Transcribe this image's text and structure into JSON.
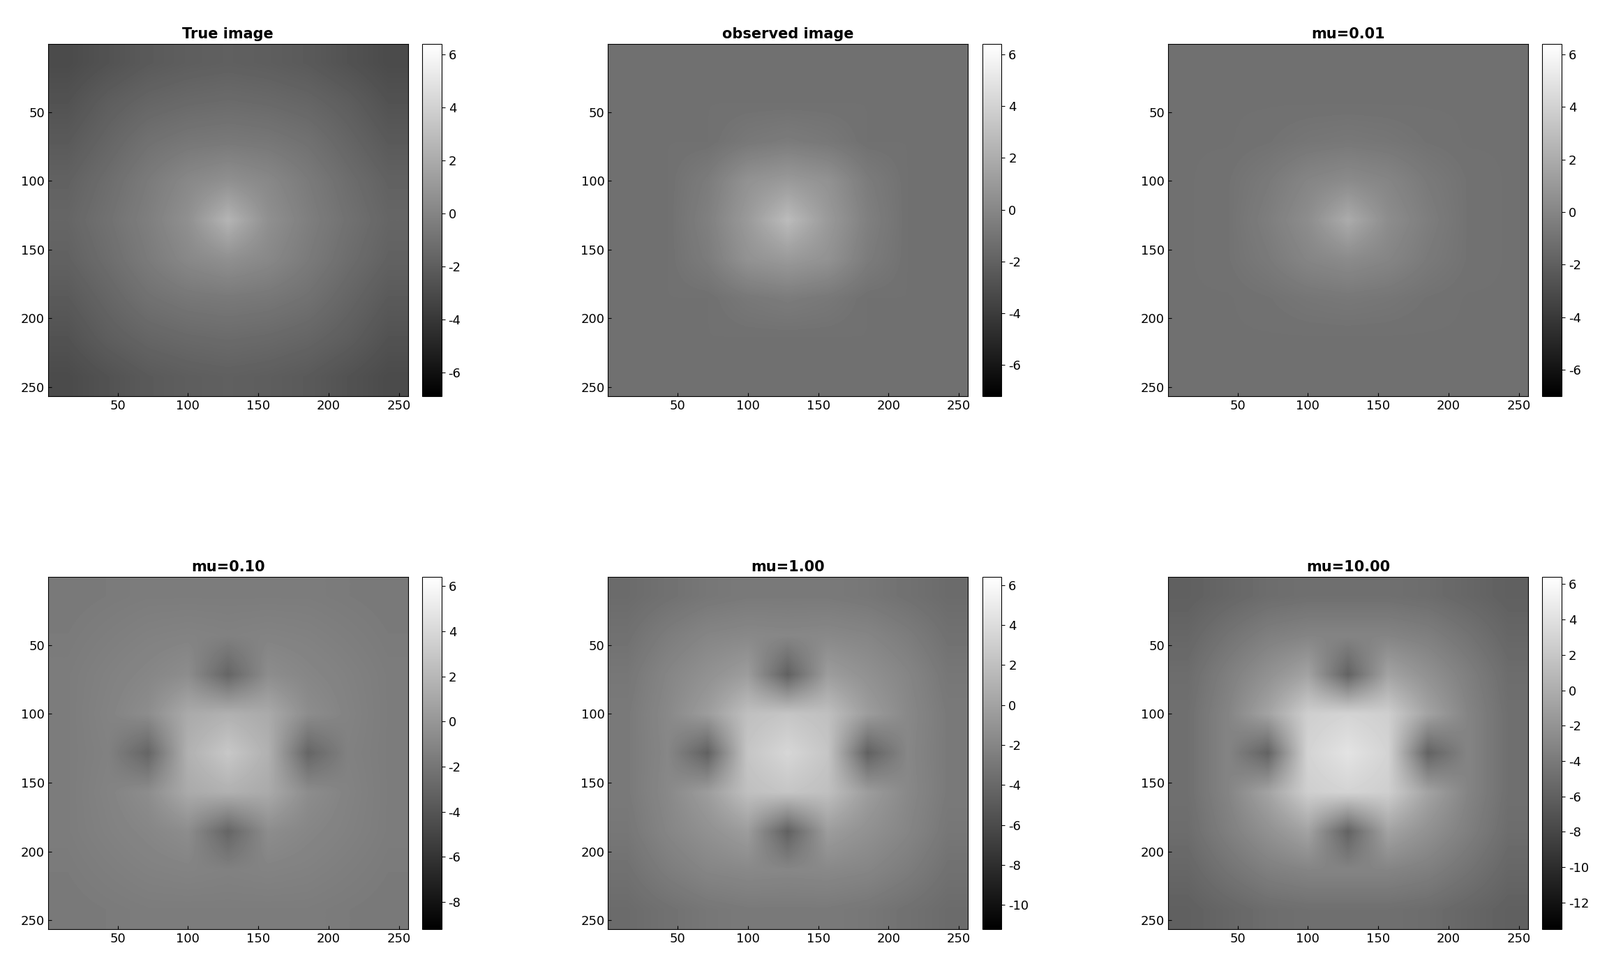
{
  "chart_data": [
    {
      "type": "heatmap",
      "title": "True image",
      "xlim": [
        0.5,
        256.5
      ],
      "ylim": [
        256.5,
        0.5
      ],
      "xticks": [
        50,
        100,
        150,
        200,
        250
      ],
      "yticks": [
        50,
        100,
        150,
        200,
        250
      ],
      "colorbar_range": [
        -6.9,
        6.4
      ],
      "colorbar_ticks": [
        -6,
        -4,
        -2,
        0,
        2,
        4,
        6
      ],
      "cells": [
        [
          -3.0,
          -2.6,
          -2.2,
          -2.0,
          -1.9,
          -2.0,
          -2.2,
          -2.6,
          -3.0
        ],
        [
          -2.6,
          -2.0,
          -1.6,
          -1.4,
          -1.3,
          -1.4,
          -1.6,
          -2.0,
          -2.6
        ],
        [
          -2.2,
          -1.6,
          -1.0,
          -0.7,
          -0.6,
          -0.7,
          -1.0,
          -1.6,
          -2.2
        ],
        [
          -1.8,
          -1.2,
          -0.5,
          0.2,
          0.6,
          0.2,
          -0.5,
          -1.2,
          -1.8
        ],
        [
          -1.6,
          -1.0,
          -0.3,
          0.6,
          2.5,
          0.6,
          -0.3,
          -1.0,
          -1.6
        ],
        [
          -1.8,
          -1.2,
          -0.5,
          0.2,
          0.6,
          0.2,
          -0.5,
          -1.2,
          -1.8
        ],
        [
          -2.2,
          -1.6,
          -1.0,
          -0.7,
          -0.6,
          -0.7,
          -1.0,
          -1.6,
          -2.2
        ],
        [
          -2.6,
          -2.0,
          -1.6,
          -1.4,
          -1.3,
          -1.4,
          -1.6,
          -2.0,
          -2.6
        ],
        [
          -3.0,
          -2.6,
          -2.2,
          -2.0,
          -1.9,
          -2.0,
          -2.2,
          -2.6,
          -3.0
        ]
      ]
    },
    {
      "type": "heatmap",
      "title": "observed image",
      "xlim": [
        0.5,
        256.5
      ],
      "ylim": [
        256.5,
        0.5
      ],
      "xticks": [
        50,
        100,
        150,
        200,
        250
      ],
      "yticks": [
        50,
        100,
        150,
        200,
        250
      ],
      "colorbar_range": [
        -7.2,
        6.4
      ],
      "colorbar_ticks": [
        -6,
        -4,
        -2,
        0,
        2,
        4,
        6
      ],
      "cells": [
        [
          -1.2,
          -1.2,
          -1.2,
          -1.2,
          -1.2,
          -1.2,
          -1.2,
          -1.2,
          -1.2
        ],
        [
          -1.2,
          -1.2,
          -1.2,
          -1.2,
          -1.2,
          -1.2,
          -1.2,
          -1.2,
          -1.2
        ],
        [
          -1.2,
          -1.2,
          -1.2,
          -0.8,
          -0.6,
          -0.8,
          -1.2,
          -1.2,
          -1.2
        ],
        [
          -1.2,
          -1.2,
          -0.6,
          0.6,
          1.0,
          0.6,
          -0.6,
          -1.2,
          -1.2
        ],
        [
          -1.2,
          -1.2,
          -0.4,
          1.0,
          2.8,
          1.0,
          -0.4,
          -1.2,
          -1.2
        ],
        [
          -1.2,
          -1.2,
          -0.6,
          0.6,
          1.0,
          0.6,
          -0.6,
          -1.2,
          -1.2
        ],
        [
          -1.2,
          -1.2,
          -1.2,
          -0.8,
          -0.6,
          -0.8,
          -1.2,
          -1.2,
          -1.2
        ],
        [
          -1.2,
          -1.2,
          -1.2,
          -1.2,
          -1.2,
          -1.2,
          -1.2,
          -1.2,
          -1.2
        ],
        [
          -1.2,
          -1.2,
          -1.2,
          -1.2,
          -1.2,
          -1.2,
          -1.2,
          -1.2,
          -1.2
        ]
      ]
    },
    {
      "type": "heatmap",
      "title": "mu=0.01",
      "xlim": [
        0.5,
        256.5
      ],
      "ylim": [
        256.5,
        0.5
      ],
      "xticks": [
        50,
        100,
        150,
        200,
        250
      ],
      "yticks": [
        50,
        100,
        150,
        200,
        250
      ],
      "colorbar_range": [
        -7.0,
        6.4
      ],
      "colorbar_ticks": [
        -6,
        -4,
        -2,
        0,
        2,
        4,
        6
      ],
      "cells": [
        [
          -1.1,
          -1.1,
          -1.1,
          -1.1,
          -1.1,
          -1.1,
          -1.1,
          -1.1,
          -1.1
        ],
        [
          -1.1,
          -1.1,
          -1.1,
          -1.1,
          -1.1,
          -1.1,
          -1.1,
          -1.1,
          -1.1
        ],
        [
          -1.1,
          -1.1,
          -1.0,
          -0.8,
          -0.7,
          -0.8,
          -1.0,
          -1.1,
          -1.1
        ],
        [
          -1.1,
          -1.0,
          -0.6,
          0.0,
          0.3,
          0.0,
          -0.6,
          -1.0,
          -1.1
        ],
        [
          -1.1,
          -1.0,
          -0.4,
          0.4,
          2.0,
          0.4,
          -0.4,
          -1.0,
          -1.1
        ],
        [
          -1.1,
          -1.0,
          -0.6,
          0.0,
          0.3,
          0.0,
          -0.6,
          -1.0,
          -1.1
        ],
        [
          -1.1,
          -1.1,
          -1.0,
          -0.8,
          -0.7,
          -0.8,
          -1.0,
          -1.1,
          -1.1
        ],
        [
          -1.1,
          -1.1,
          -1.1,
          -1.1,
          -1.1,
          -1.1,
          -1.1,
          -1.1,
          -1.1
        ],
        [
          -1.1,
          -1.1,
          -1.1,
          -1.1,
          -1.1,
          -1.1,
          -1.1,
          -1.1,
          -1.1
        ]
      ]
    },
    {
      "type": "heatmap",
      "title": "mu=0.10",
      "xlim": [
        0.5,
        256.5
      ],
      "ylim": [
        256.5,
        0.5
      ],
      "xticks": [
        50,
        100,
        150,
        200,
        250
      ],
      "yticks": [
        50,
        100,
        150,
        200,
        250
      ],
      "colorbar_range": [
        -9.2,
        6.4
      ],
      "colorbar_ticks": [
        -8,
        -6,
        -4,
        -2,
        0,
        2,
        4,
        6
      ],
      "cells": [
        [
          -1.8,
          -1.7,
          -1.6,
          -1.6,
          -1.6,
          -1.6,
          -1.6,
          -1.7,
          -1.8
        ],
        [
          -1.7,
          -1.5,
          -1.3,
          -1.2,
          -1.3,
          -1.2,
          -1.3,
          -1.5,
          -1.7
        ],
        [
          -1.6,
          -1.3,
          -1.0,
          -0.6,
          -3.0,
          -0.6,
          -1.0,
          -1.3,
          -1.6
        ],
        [
          -1.6,
          -1.2,
          -0.6,
          1.2,
          1.6,
          1.2,
          -0.6,
          -1.2,
          -1.6
        ],
        [
          -1.6,
          -1.3,
          -3.0,
          1.6,
          3.0,
          1.6,
          -3.0,
          -1.3,
          -1.6
        ],
        [
          -1.6,
          -1.2,
          -0.6,
          1.2,
          1.6,
          1.2,
          -0.6,
          -1.2,
          -1.6
        ],
        [
          -1.6,
          -1.3,
          -1.0,
          -0.6,
          -3.0,
          -0.6,
          -1.0,
          -1.3,
          -1.6
        ],
        [
          -1.7,
          -1.5,
          -1.3,
          -1.2,
          -1.3,
          -1.2,
          -1.3,
          -1.5,
          -1.7
        ],
        [
          -1.8,
          -1.7,
          -1.6,
          -1.6,
          -1.6,
          -1.6,
          -1.6,
          -1.7,
          -1.8
        ]
      ]
    },
    {
      "type": "heatmap",
      "title": "mu=1.00",
      "xlim": [
        0.5,
        256.5
      ],
      "ylim": [
        256.5,
        0.5
      ],
      "xticks": [
        50,
        100,
        150,
        200,
        250
      ],
      "yticks": [
        50,
        100,
        150,
        200,
        250
      ],
      "colorbar_range": [
        -11.2,
        6.4
      ],
      "colorbar_ticks": [
        -10,
        -8,
        -6,
        -4,
        -2,
        0,
        2,
        4,
        6
      ],
      "cells": [
        [
          -3.8,
          -3.4,
          -3.0,
          -2.8,
          -2.8,
          -2.8,
          -3.0,
          -3.4,
          -3.8
        ],
        [
          -3.4,
          -2.6,
          -2.0,
          -1.8,
          -1.9,
          -1.8,
          -2.0,
          -2.6,
          -3.4
        ],
        [
          -3.0,
          -2.0,
          -1.2,
          -0.4,
          -4.5,
          -0.4,
          -1.2,
          -2.0,
          -3.0
        ],
        [
          -2.8,
          -1.8,
          -0.4,
          2.0,
          2.4,
          2.0,
          -0.4,
          -1.8,
          -2.8
        ],
        [
          -2.8,
          -1.9,
          -4.5,
          2.4,
          3.6,
          2.4,
          -4.5,
          -1.9,
          -2.8
        ],
        [
          -2.8,
          -1.8,
          -0.4,
          2.0,
          2.4,
          2.0,
          -0.4,
          -1.8,
          -2.8
        ],
        [
          -3.0,
          -2.0,
          -1.2,
          -0.4,
          -4.5,
          -0.4,
          -1.2,
          -2.0,
          -3.0
        ],
        [
          -3.4,
          -2.6,
          -2.0,
          -1.8,
          -1.9,
          -1.8,
          -2.0,
          -2.6,
          -3.4
        ],
        [
          -3.8,
          -3.4,
          -3.0,
          -2.8,
          -2.8,
          -2.8,
          -3.0,
          -3.4,
          -3.8
        ]
      ]
    },
    {
      "type": "heatmap",
      "title": "mu=10.00",
      "xlim": [
        0.5,
        256.5
      ],
      "ylim": [
        256.5,
        0.5
      ],
      "xticks": [
        50,
        100,
        150,
        200,
        250
      ],
      "yticks": [
        50,
        100,
        150,
        200,
        250
      ],
      "colorbar_range": [
        -13.5,
        6.4
      ],
      "colorbar_ticks": [
        -12,
        -10,
        -8,
        -6,
        -4,
        -2,
        0,
        2,
        4,
        6
      ],
      "cells": [
        [
          -6.0,
          -5.5,
          -5.0,
          -4.8,
          -4.8,
          -4.8,
          -5.0,
          -5.5,
          -6.0
        ],
        [
          -5.5,
          -4.5,
          -3.6,
          -3.2,
          -3.2,
          -3.2,
          -3.6,
          -4.5,
          -5.5
        ],
        [
          -5.0,
          -3.6,
          -2.2,
          -0.8,
          -5.8,
          -0.8,
          -2.2,
          -3.6,
          -5.0
        ],
        [
          -4.8,
          -3.2,
          -0.8,
          2.6,
          3.0,
          2.6,
          -0.8,
          -3.2,
          -4.8
        ],
        [
          -4.8,
          -3.2,
          -5.8,
          3.0,
          4.2,
          3.0,
          -5.8,
          -3.2,
          -4.8
        ],
        [
          -4.8,
          -3.2,
          -0.8,
          2.6,
          3.0,
          2.6,
          -0.8,
          -3.2,
          -4.8
        ],
        [
          -5.0,
          -3.6,
          -2.2,
          -0.8,
          -5.8,
          -0.8,
          -2.2,
          -3.6,
          -5.0
        ],
        [
          -5.5,
          -4.5,
          -3.6,
          -3.2,
          -3.2,
          -3.2,
          -3.6,
          -4.5,
          -5.5
        ],
        [
          -6.0,
          -5.5,
          -5.0,
          -4.8,
          -4.8,
          -4.8,
          -5.0,
          -5.5,
          -6.0
        ]
      ]
    }
  ]
}
